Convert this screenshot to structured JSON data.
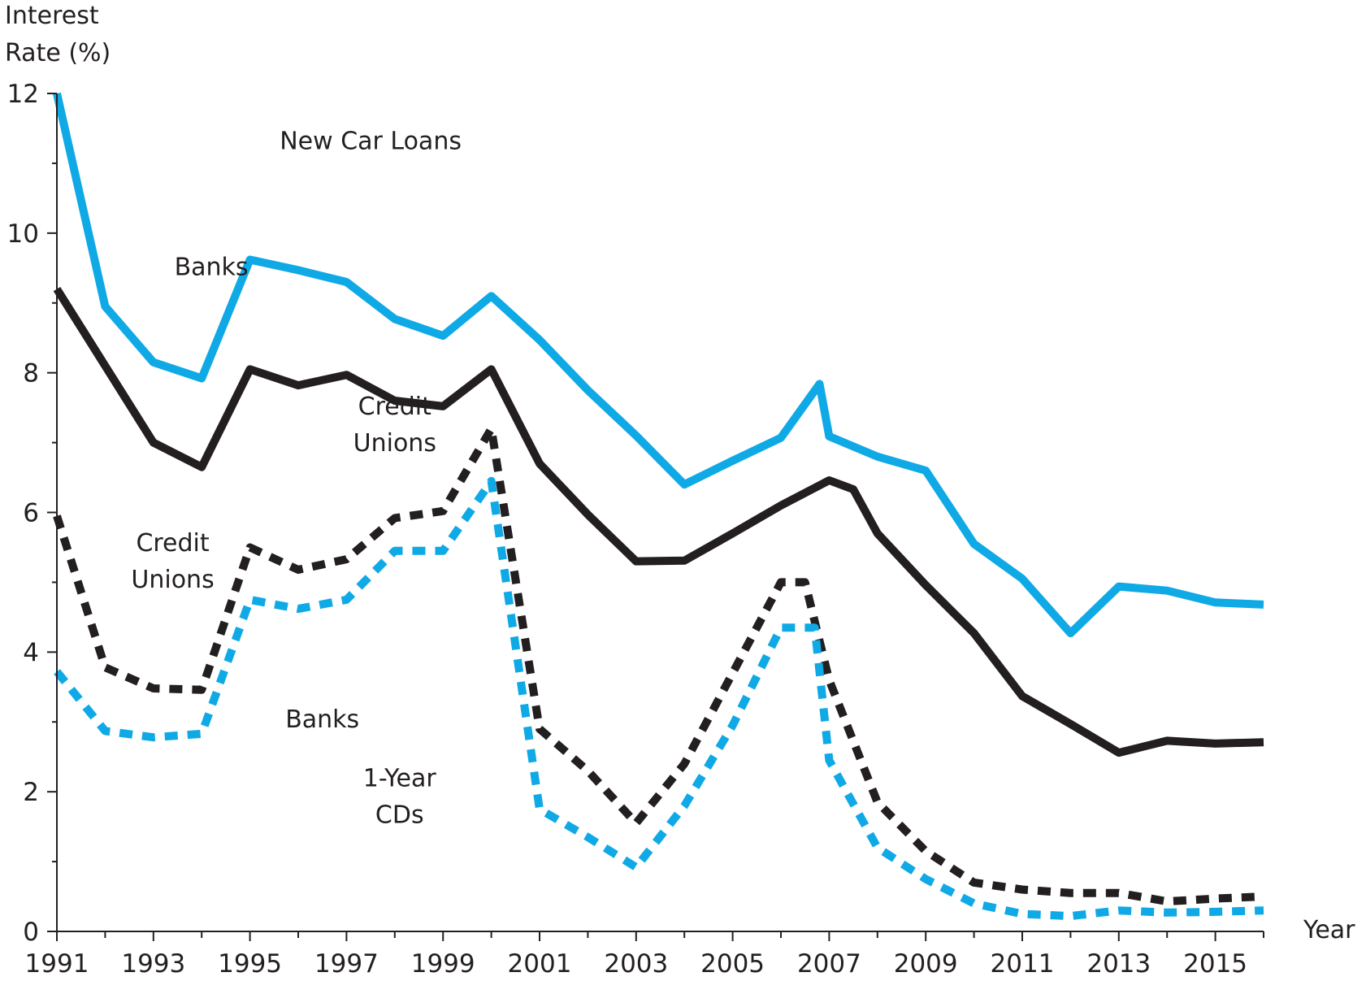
{
  "chart_data": {
    "type": "line",
    "ylabel_lines": [
      "Interest",
      "Rate (%)"
    ],
    "xlabel": "Year",
    "ylim": [
      0,
      12
    ],
    "xlim": [
      1991,
      2016
    ],
    "yticks": [
      0,
      2,
      4,
      6,
      8,
      10,
      12
    ],
    "xtick_labels": [
      "1991",
      "1993",
      "1995",
      "1997",
      "1999",
      "2001",
      "2003",
      "2005",
      "2007",
      "2009",
      "2011",
      "2013",
      "2015"
    ],
    "grid": false,
    "legend": "none (direct labels on chart)",
    "series": [
      {
        "group": "car",
        "style": "solid",
        "color": "#0fa9e6",
        "x": [
          1991,
          1992,
          1993,
          1994,
          1995,
          1996,
          1997,
          1998,
          1999,
          2000,
          2001,
          2002,
          2003,
          2004,
          2005,
          2006,
          2006.8,
          2007,
          2008,
          2009,
          2010,
          2011,
          2012,
          2013,
          2014,
          2015,
          2016
        ],
        "values": [
          12.0,
          8.95,
          8.15,
          7.92,
          9.62,
          9.47,
          9.3,
          8.77,
          8.53,
          9.1,
          8.47,
          7.75,
          7.1,
          6.4,
          6.74,
          7.07,
          7.84,
          7.09,
          6.8,
          6.6,
          5.55,
          5.05,
          4.27,
          4.94,
          4.88,
          4.71,
          4.68
        ]
      },
      {
        "group": "car",
        "style": "solid",
        "color": "#231f20",
        "x": [
          1991,
          1992,
          1993,
          1994,
          1995,
          1996,
          1997,
          1998,
          1999,
          2000,
          2001,
          2002,
          2003,
          2004,
          2005,
          2006,
          2007,
          2007.5,
          2008,
          2009,
          2010,
          2011,
          2012,
          2013,
          2014,
          2015,
          2016
        ],
        "values": [
          9.2,
          8.1,
          7.0,
          6.65,
          8.05,
          7.82,
          7.97,
          7.6,
          7.52,
          8.05,
          6.7,
          5.97,
          5.3,
          5.31,
          5.7,
          6.1,
          6.46,
          6.33,
          5.7,
          4.96,
          4.27,
          3.37,
          2.97,
          2.56,
          2.73,
          2.69,
          2.71
        ]
      },
      {
        "group": "cd",
        "style": "dashed",
        "color": "#231f20",
        "x": [
          1991,
          1992,
          1993,
          1994,
          1995,
          1996,
          1997,
          1998,
          1999,
          2000,
          2001,
          2002,
          2003,
          2004,
          2005,
          2006,
          2006.5,
          2007,
          2008,
          2009,
          2010,
          2011,
          2012,
          2013,
          2014,
          2015,
          2016
        ],
        "values": [
          5.95,
          3.78,
          3.48,
          3.46,
          5.5,
          5.18,
          5.33,
          5.92,
          6.02,
          7.2,
          2.9,
          2.3,
          1.55,
          2.4,
          3.7,
          5.0,
          5.0,
          3.6,
          1.85,
          1.15,
          0.7,
          0.6,
          0.55,
          0.55,
          0.43,
          0.47,
          0.5
        ]
      },
      {
        "group": "cd",
        "style": "dashed",
        "color": "#0fa9e6",
        "x": [
          1991,
          1992,
          1993,
          1994,
          1995,
          1996,
          1997,
          1998,
          1999,
          2000,
          2001,
          2002,
          2003,
          2004,
          2005,
          2006,
          2006.7,
          2007,
          2008,
          2009,
          2010,
          2011,
          2012,
          2013,
          2014,
          2015,
          2016
        ],
        "values": [
          3.72,
          2.87,
          2.78,
          2.83,
          4.75,
          4.62,
          4.75,
          5.45,
          5.45,
          6.45,
          1.75,
          1.35,
          0.92,
          1.8,
          2.95,
          4.35,
          4.35,
          2.45,
          1.2,
          0.75,
          0.4,
          0.25,
          0.22,
          0.3,
          0.27,
          0.28,
          0.3
        ]
      }
    ],
    "annotations": [
      {
        "key": "new-car-loans",
        "lines": [
          "New Car Loans"
        ],
        "at": [
          1997.5,
          11.2
        ]
      },
      {
        "key": "car-banks",
        "lines": [
          "Banks"
        ],
        "at": [
          1994.2,
          9.4
        ]
      },
      {
        "key": "car-credit-unions",
        "lines": [
          "Credit",
          "Unions"
        ],
        "at": [
          1998.0,
          7.4
        ]
      },
      {
        "key": "cd-credit-unions",
        "lines": [
          "Credit",
          "Unions"
        ],
        "at": [
          1993.4,
          5.45
        ]
      },
      {
        "key": "cd-banks",
        "lines": [
          "Banks"
        ],
        "at": [
          1996.5,
          2.92
        ]
      },
      {
        "key": "one-year-cds",
        "lines": [
          "1-Year",
          "CDs"
        ],
        "at": [
          1998.1,
          2.08
        ]
      }
    ]
  }
}
